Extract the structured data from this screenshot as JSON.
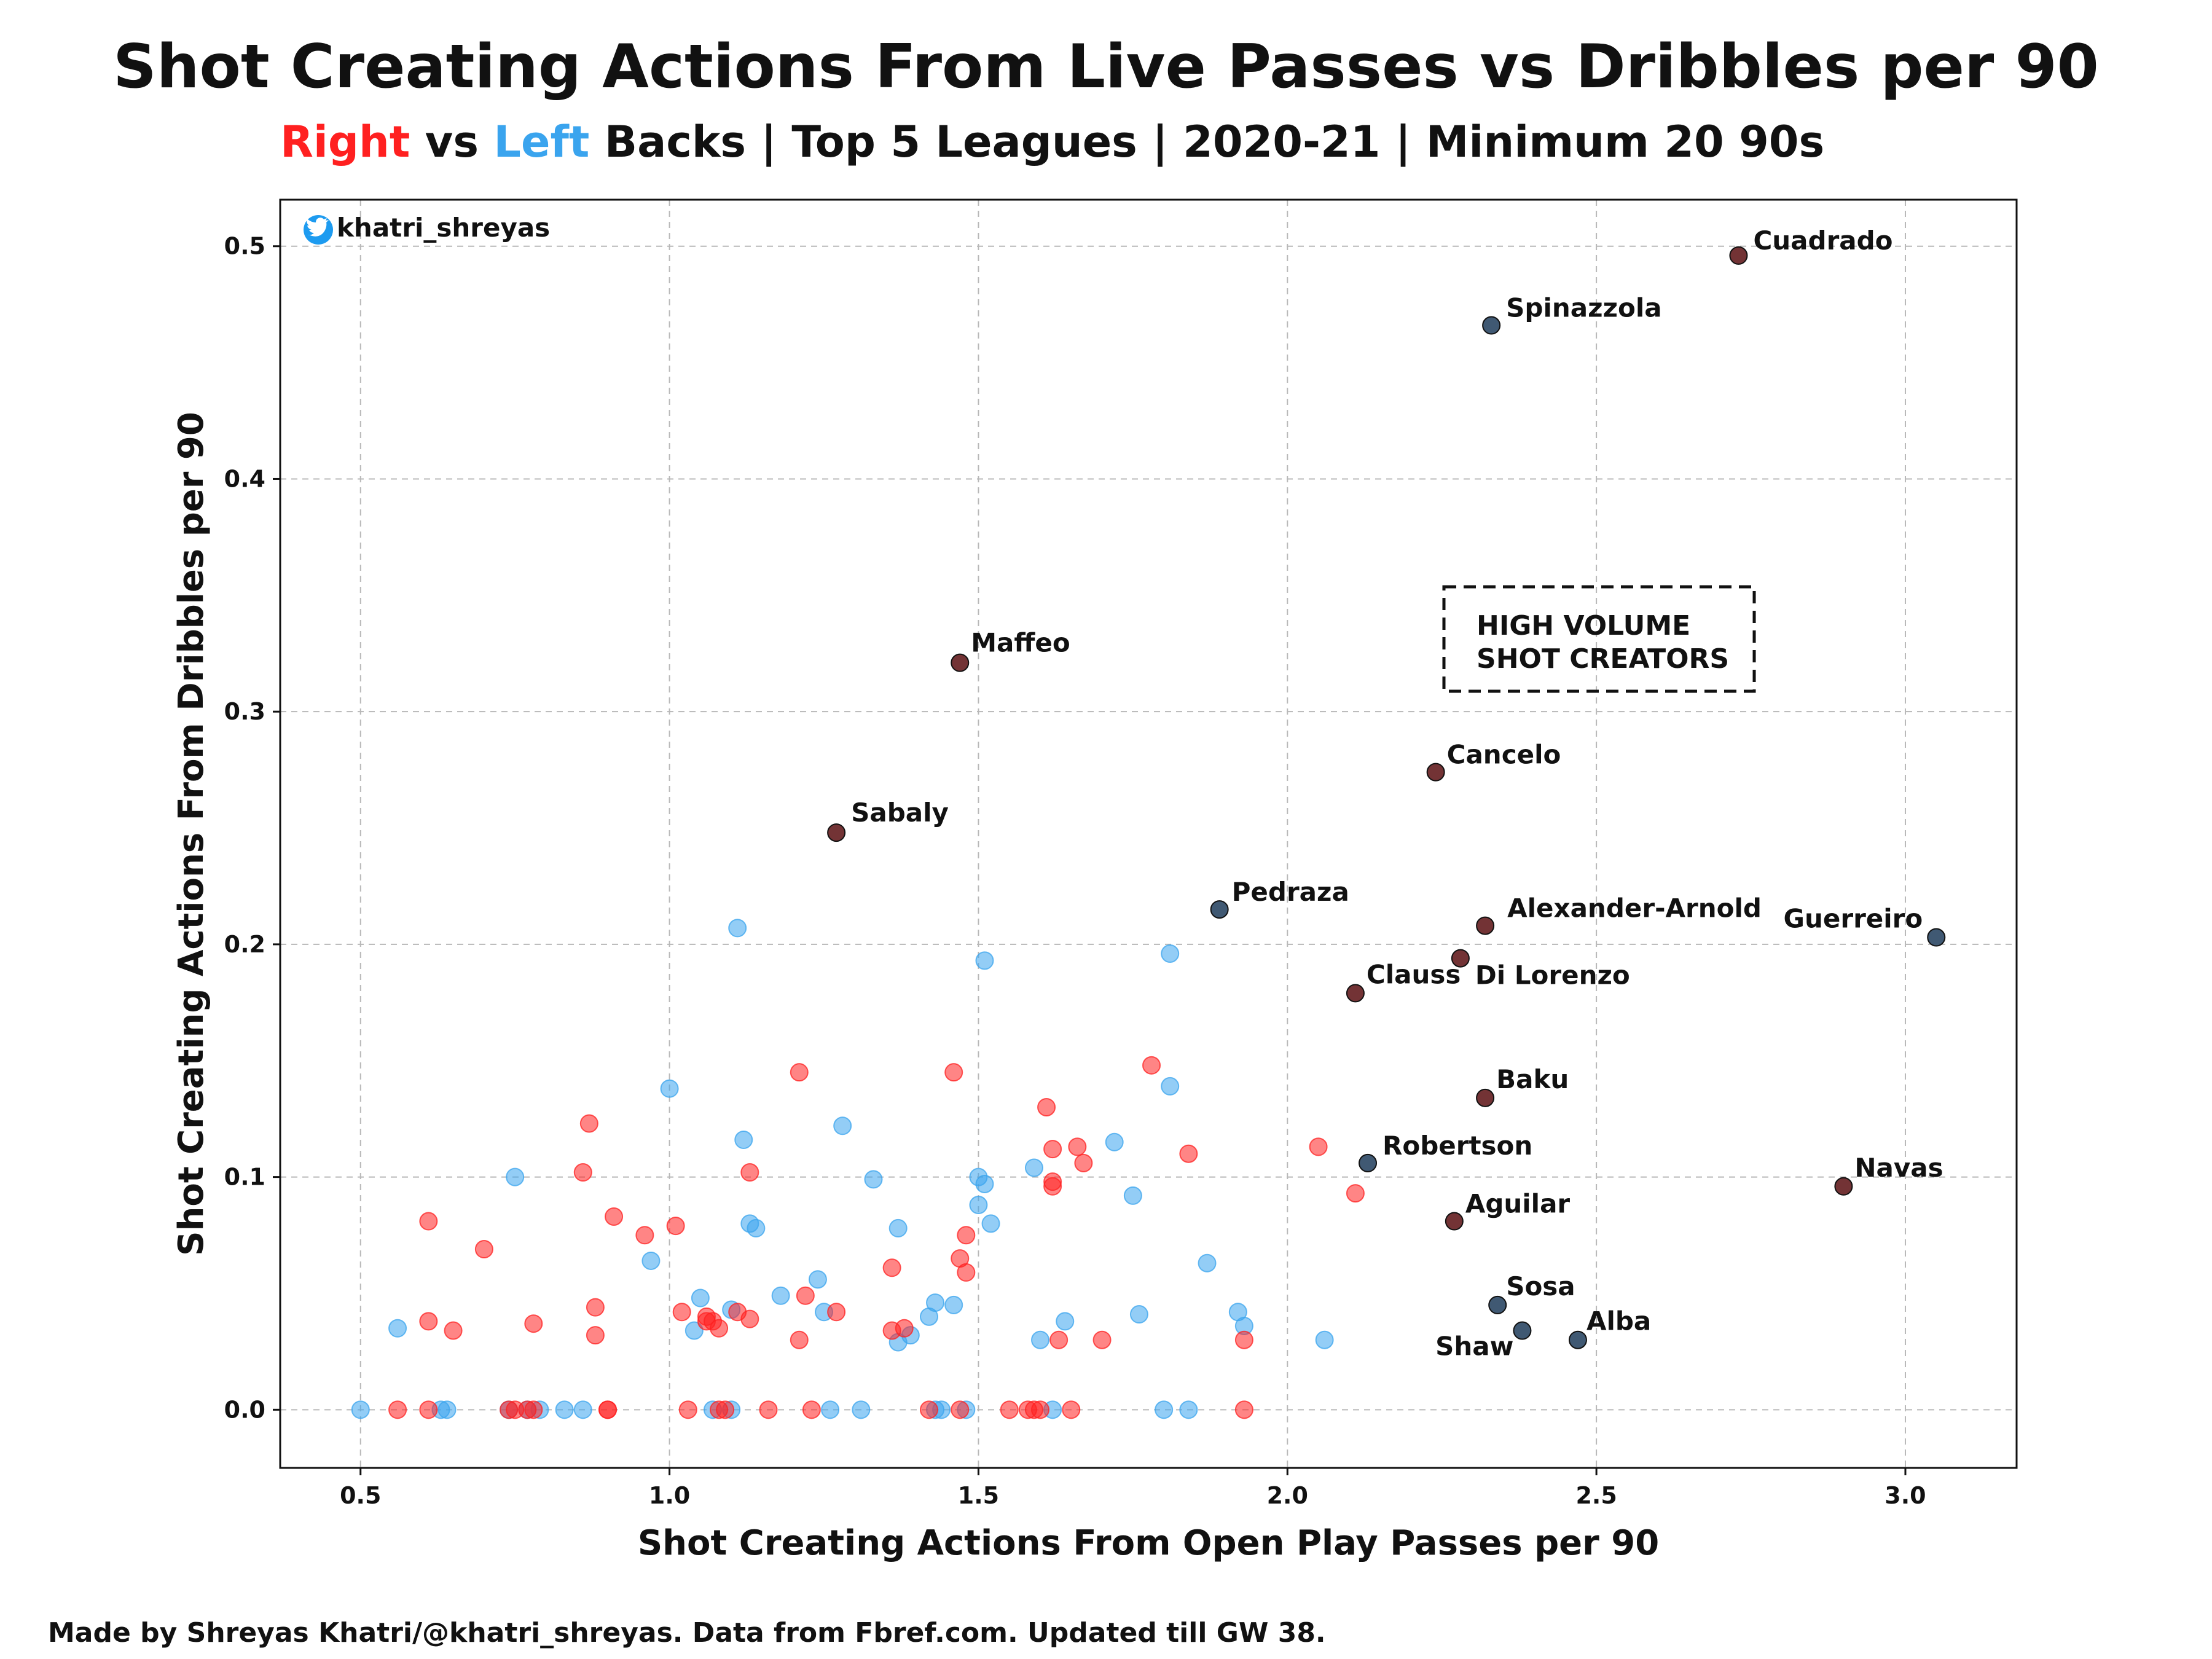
{
  "header": {
    "title": "Shot Creating Actions From Live Passes vs Dribbles per 90",
    "subtitle_right": "Right",
    "subtitle_vs": " vs ",
    "subtitle_left": "Left",
    "subtitle_rest": " Backs | Top 5 Leagues | 2020-21 | Minimum 20 90s"
  },
  "footer": "Made by Shreyas Khatri/@khatri_shreyas. Data from Fbref.com. Updated till GW 38.",
  "handle": "khatri_shreyas",
  "colors": {
    "right": "#ff2020",
    "left": "#3aa4ee",
    "right_dark": "#5a0f12",
    "left_dark": "#1e3c5a",
    "grid": "#b8b8b8"
  },
  "chart_data": {
    "type": "scatter",
    "xlabel": "Shot Creating Actions From Open Play Passes per 90",
    "ylabel": "Shot Creating Actions From Dribbles per 90",
    "xlim": [
      0.37,
      3.18
    ],
    "ylim": [
      -0.025,
      0.52
    ],
    "xticks": [
      "0.5",
      "1.0",
      "1.5",
      "2.0",
      "2.5",
      "3.0"
    ],
    "yticks": [
      "0.0",
      "0.1",
      "0.2",
      "0.3",
      "0.4",
      "0.5"
    ],
    "grid": true,
    "annotation": [
      "HIGH VOLUME",
      "SHOT CREATORS"
    ],
    "series": [
      {
        "name": "Right",
        "points": [
          [
            0.56,
            0.0
          ],
          [
            0.61,
            0.0
          ],
          [
            0.61,
            0.038
          ],
          [
            0.61,
            0.081
          ],
          [
            0.65,
            0.034
          ],
          [
            0.7,
            0.069
          ],
          [
            0.74,
            0.0
          ],
          [
            0.75,
            0.0
          ],
          [
            0.77,
            0.0
          ],
          [
            0.78,
            0.0
          ],
          [
            0.78,
            0.037
          ],
          [
            0.86,
            0.102
          ],
          [
            0.87,
            0.123
          ],
          [
            0.88,
            0.044
          ],
          [
            0.88,
            0.032
          ],
          [
            0.9,
            0.0
          ],
          [
            0.9,
            0.0
          ],
          [
            0.91,
            0.083
          ],
          [
            0.96,
            0.075
          ],
          [
            1.01,
            0.079
          ],
          [
            1.02,
            0.042
          ],
          [
            1.03,
            0.0
          ],
          [
            1.06,
            0.038
          ],
          [
            1.06,
            0.04
          ],
          [
            1.07,
            0.038
          ],
          [
            1.08,
            0.0
          ],
          [
            1.08,
            0.035
          ],
          [
            1.09,
            0.0
          ],
          [
            1.11,
            0.042
          ],
          [
            1.13,
            0.102
          ],
          [
            1.13,
            0.039
          ],
          [
            1.16,
            0.0
          ],
          [
            1.21,
            0.145
          ],
          [
            1.21,
            0.03
          ],
          [
            1.22,
            0.049
          ],
          [
            1.23,
            0.0
          ],
          [
            1.27,
            0.042
          ],
          [
            1.36,
            0.061
          ],
          [
            1.36,
            0.034
          ],
          [
            1.38,
            0.035
          ],
          [
            1.42,
            0.0
          ],
          [
            1.46,
            0.145
          ],
          [
            1.47,
            0.065
          ],
          [
            1.47,
            0.0
          ],
          [
            1.48,
            0.075
          ],
          [
            1.48,
            0.059
          ],
          [
            1.55,
            0.0
          ],
          [
            1.58,
            0.0
          ],
          [
            1.59,
            0.0
          ],
          [
            1.6,
            0.0
          ],
          [
            1.61,
            0.13
          ],
          [
            1.62,
            0.112
          ],
          [
            1.62,
            0.098
          ],
          [
            1.62,
            0.096
          ],
          [
            1.63,
            0.03
          ],
          [
            1.65,
            0.0
          ],
          [
            1.66,
            0.113
          ],
          [
            1.67,
            0.106
          ],
          [
            1.7,
            0.03
          ],
          [
            1.78,
            0.148
          ],
          [
            1.84,
            0.11
          ],
          [
            1.93,
            0.03
          ],
          [
            1.93,
            0.0
          ],
          [
            2.05,
            0.113
          ],
          [
            2.11,
            0.093
          ]
        ]
      },
      {
        "name": "Left",
        "points": [
          [
            0.5,
            0.0
          ],
          [
            0.56,
            0.035
          ],
          [
            0.63,
            0.0
          ],
          [
            0.64,
            0.0
          ],
          [
            0.74,
            0.0
          ],
          [
            0.75,
            0.1
          ],
          [
            0.77,
            0.0
          ],
          [
            0.79,
            0.0
          ],
          [
            0.83,
            0.0
          ],
          [
            0.86,
            0.0
          ],
          [
            0.97,
            0.064
          ],
          [
            1.0,
            0.138
          ],
          [
            1.04,
            0.034
          ],
          [
            1.05,
            0.048
          ],
          [
            1.07,
            0.0
          ],
          [
            1.1,
            0.0
          ],
          [
            1.1,
            0.043
          ],
          [
            1.11,
            0.207
          ],
          [
            1.12,
            0.116
          ],
          [
            1.13,
            0.08
          ],
          [
            1.14,
            0.078
          ],
          [
            1.18,
            0.049
          ],
          [
            1.24,
            0.056
          ],
          [
            1.25,
            0.042
          ],
          [
            1.26,
            0.0
          ],
          [
            1.28,
            0.122
          ],
          [
            1.31,
            0.0
          ],
          [
            1.33,
            0.099
          ],
          [
            1.37,
            0.078
          ],
          [
            1.37,
            0.029
          ],
          [
            1.39,
            0.032
          ],
          [
            1.42,
            0.04
          ],
          [
            1.43,
            0.046
          ],
          [
            1.43,
            0.0
          ],
          [
            1.44,
            0.0
          ],
          [
            1.46,
            0.045
          ],
          [
            1.48,
            0.0
          ],
          [
            1.5,
            0.1
          ],
          [
            1.5,
            0.088
          ],
          [
            1.51,
            0.193
          ],
          [
            1.51,
            0.097
          ],
          [
            1.52,
            0.08
          ],
          [
            1.59,
            0.104
          ],
          [
            1.6,
            0.03
          ],
          [
            1.62,
            0.0
          ],
          [
            1.64,
            0.038
          ],
          [
            1.72,
            0.115
          ],
          [
            1.75,
            0.092
          ],
          [
            1.76,
            0.041
          ],
          [
            1.8,
            0.0
          ],
          [
            1.81,
            0.196
          ],
          [
            1.81,
            0.139
          ],
          [
            1.84,
            0.0
          ],
          [
            1.87,
            0.063
          ],
          [
            1.92,
            0.042
          ],
          [
            1.93,
            0.036
          ],
          [
            2.06,
            0.03
          ]
        ]
      },
      {
        "name": "Right (labelled)",
        "points": [
          {
            "label": "Cuadrado",
            "x": 2.73,
            "y": 0.496
          },
          {
            "label": "Maffeo",
            "x": 1.47,
            "y": 0.321
          },
          {
            "label": "Sabaly",
            "x": 1.27,
            "y": 0.248
          },
          {
            "label": "Cancelo",
            "x": 2.24,
            "y": 0.274
          },
          {
            "label": "Alexander-Arnold",
            "x": 2.32,
            "y": 0.208
          },
          {
            "label": "Di Lorenzo",
            "x": 2.28,
            "y": 0.194
          },
          {
            "label": "Clauss",
            "x": 2.11,
            "y": 0.179
          },
          {
            "label": "Baku",
            "x": 2.32,
            "y": 0.134
          },
          {
            "label": "Aguilar",
            "x": 2.27,
            "y": 0.081
          },
          {
            "label": "Navas",
            "x": 2.9,
            "y": 0.096
          }
        ]
      },
      {
        "name": "Left (labelled)",
        "points": [
          {
            "label": "Spinazzola",
            "x": 2.33,
            "y": 0.466
          },
          {
            "label": "Pedraza",
            "x": 1.89,
            "y": 0.215
          },
          {
            "label": "Guerreiro",
            "x": 3.05,
            "y": 0.203
          },
          {
            "label": "Robertson",
            "x": 2.13,
            "y": 0.106
          },
          {
            "label": "Sosa",
            "x": 2.34,
            "y": 0.045
          },
          {
            "label": "Shaw",
            "x": 2.38,
            "y": 0.034
          },
          {
            "label": "Alba",
            "x": 2.47,
            "y": 0.03
          }
        ]
      }
    ]
  }
}
